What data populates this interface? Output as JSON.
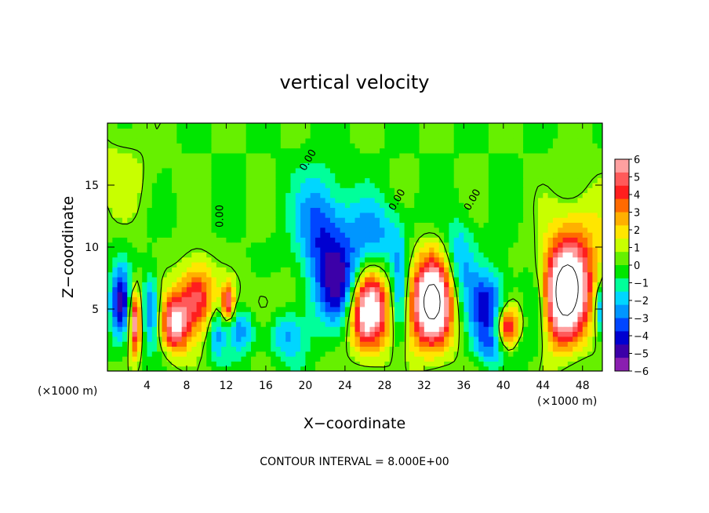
{
  "chart_data": {
    "type": "heatmap",
    "title": "vertical velocity",
    "xlabel": "X−coordinate",
    "ylabel": "Z−coordinate",
    "x_unit_left": "(×1000 m)",
    "x_unit_right": "(×1000 m)",
    "xlim": [
      0,
      50
    ],
    "ylim": [
      0,
      20
    ],
    "xticks": [
      4,
      8,
      12,
      16,
      20,
      24,
      28,
      32,
      36,
      40,
      44,
      48
    ],
    "yticks": [
      5,
      10,
      15
    ],
    "colorbar": {
      "ticks": [
        6,
        5,
        4,
        3,
        2,
        1,
        0,
        -1,
        -2,
        -3,
        -4,
        -5,
        -6
      ],
      "tick_labels": [
        "6",
        "5",
        "4",
        "3",
        "2",
        "1",
        "0",
        "−1",
        "−2",
        "−3",
        "−4",
        "−5",
        "−6"
      ],
      "colors": [
        "#8a1fb0",
        "#3c00a8",
        "#0000d0",
        "#0046ff",
        "#0096ff",
        "#00d6ff",
        "#00ff9a",
        "#00e600",
        "#66f000",
        "#c8ff00",
        "#ffe600",
        "#ffb000",
        "#ff6a00",
        "#ff1e1e",
        "#ff5a5a",
        "#ffa0a0"
      ]
    },
    "contour_labels": [
      {
        "text": "0.00",
        "x": 11.4,
        "z": 12.5,
        "angle": -90
      },
      {
        "text": "0.00",
        "x": 20.3,
        "z": 17.0,
        "angle": -60
      },
      {
        "text": "0.00",
        "x": 29.3,
        "z": 13.8,
        "angle": -60
      },
      {
        "text": "0.00",
        "x": 36.9,
        "z": 13.8,
        "angle": -60
      }
    ],
    "features": [
      {
        "sign": 1,
        "x": 26.2,
        "z": 5.0,
        "sx": 2.1,
        "sz": 3.3,
        "amp": 9.0
      },
      {
        "sign": 1,
        "x": 32.8,
        "z": 5.5,
        "sx": 2.2,
        "sz": 3.7,
        "amp": 9.0
      },
      {
        "sign": 1,
        "x": 46.2,
        "z": 6.2,
        "sx": 2.3,
        "sz": 4.0,
        "amp": 9.0
      },
      {
        "sign": 1,
        "x": 40.4,
        "z": 3.2,
        "sx": 1.3,
        "sz": 2.2,
        "amp": 7.0
      },
      {
        "sign": 1,
        "x": 9.0,
        "z": 6.0,
        "sx": 1.8,
        "sz": 2.8,
        "amp": 5.0
      },
      {
        "sign": 1,
        "x": 6.8,
        "z": 3.8,
        "sx": 1.4,
        "sz": 2.3,
        "amp": 6.0
      },
      {
        "sign": 1,
        "x": 2.8,
        "z": 4.0,
        "sx": 0.6,
        "sz": 2.6,
        "amp": 6.0
      },
      {
        "sign": 1,
        "x": 12.2,
        "z": 5.5,
        "sx": 0.6,
        "sz": 1.4,
        "amp": 5.0
      },
      {
        "sign": 1,
        "x": 15.5,
        "z": 5.2,
        "sx": 2.5,
        "sz": 2.5,
        "amp": 1.4
      },
      {
        "sign": 1,
        "x": 48.0,
        "z": 10.0,
        "sx": 3.0,
        "sz": 5.0,
        "amp": 2.0
      },
      {
        "sign": 1,
        "x": 1.0,
        "z": 16.0,
        "sx": 4.0,
        "sz": 4.0,
        "amp": 1.0
      },
      {
        "sign": -1,
        "x": 24.0,
        "z": 6.5,
        "sx": 2.5,
        "sz": 3.5,
        "amp": 5.2
      },
      {
        "sign": -1,
        "x": 21.5,
        "z": 11.5,
        "sx": 2.5,
        "sz": 4.5,
        "amp": 3.5
      },
      {
        "sign": -1,
        "x": 27.0,
        "z": 11.0,
        "sx": 3.0,
        "sz": 3.0,
        "amp": 2.5
      },
      {
        "sign": -1,
        "x": 29.5,
        "z": 6.0,
        "sx": 0.8,
        "sz": 4.0,
        "amp": 3.0
      },
      {
        "sign": -1,
        "x": 38.5,
        "z": 5.0,
        "sx": 2.2,
        "sz": 3.0,
        "amp": 4.5
      },
      {
        "sign": -1,
        "x": 40.0,
        "z": 2.0,
        "sx": 2.5,
        "sz": 1.5,
        "amp": 3.0
      },
      {
        "sign": -1,
        "x": 35.5,
        "z": 9.0,
        "sx": 1.5,
        "sz": 3.5,
        "amp": 2.5
      },
      {
        "sign": -1,
        "x": 43.5,
        "z": 5.0,
        "sx": 1.2,
        "sz": 3.0,
        "amp": 2.0
      },
      {
        "sign": -1,
        "x": 1.3,
        "z": 5.5,
        "sx": 1.0,
        "sz": 3.0,
        "amp": 4.5
      },
      {
        "sign": -1,
        "x": 4.4,
        "z": 5.0,
        "sx": 0.8,
        "sz": 2.8,
        "amp": 3.5
      },
      {
        "sign": -1,
        "x": 13.5,
        "z": 3.5,
        "sx": 1.5,
        "sz": 2.0,
        "amp": 3.0
      },
      {
        "sign": -1,
        "x": 18.0,
        "z": 3.0,
        "sx": 2.0,
        "sz": 2.0,
        "amp": 2.5
      },
      {
        "sign": -1,
        "x": 11.0,
        "z": 3.0,
        "sx": 0.8,
        "sz": 2.0,
        "amp": 2.5
      },
      {
        "sign": -1,
        "x": 49.8,
        "z": 5.0,
        "sx": 0.5,
        "sz": 2.0,
        "amp": 3.0
      }
    ],
    "footer": "CONTOUR INTERVAL = 8.000E+00"
  }
}
